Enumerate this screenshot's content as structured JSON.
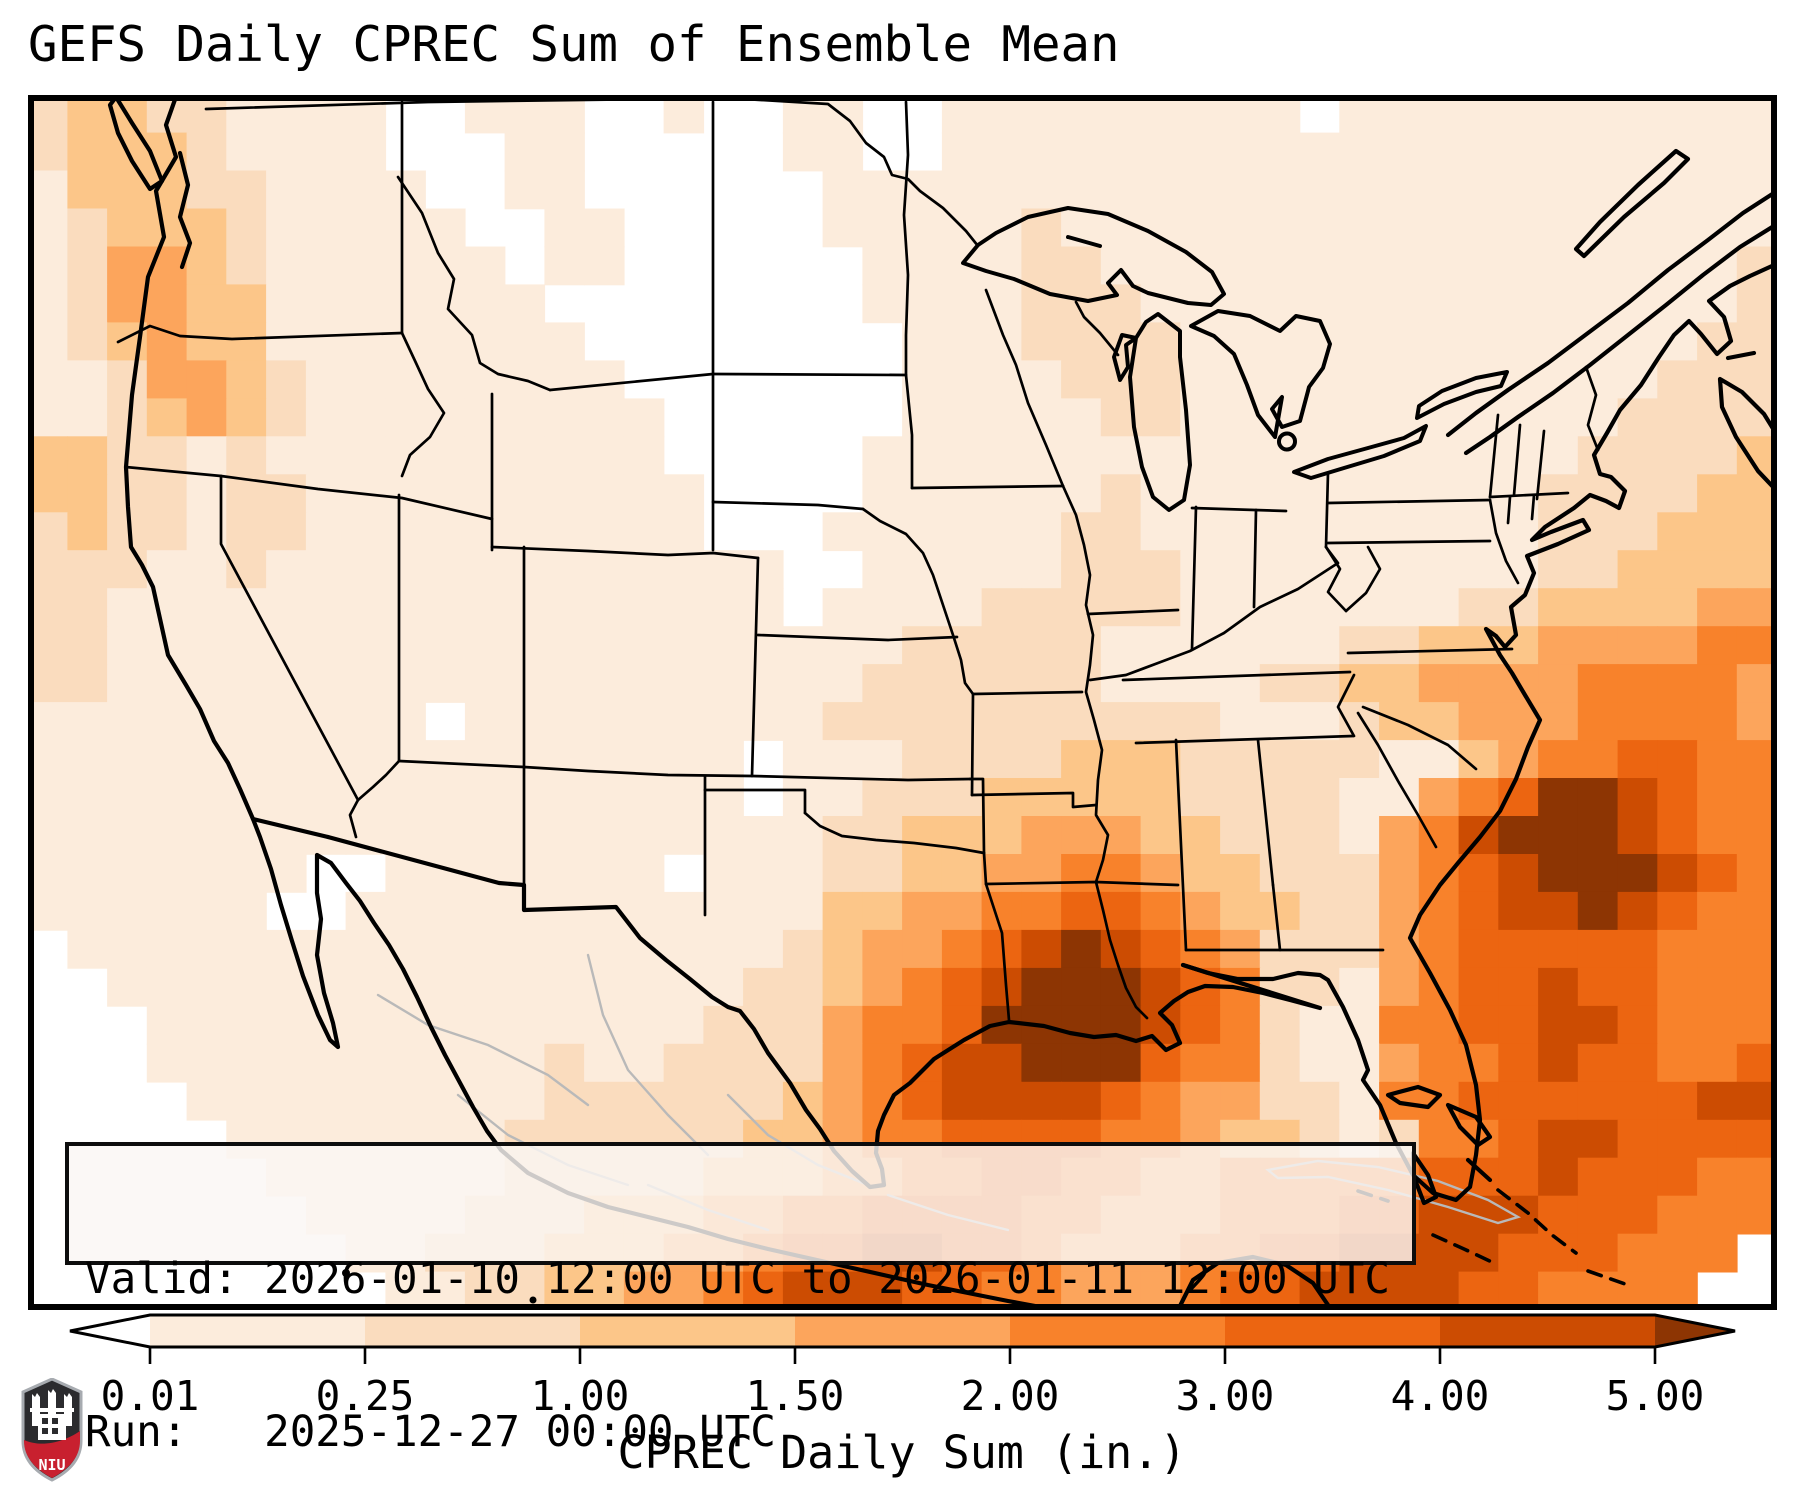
{
  "title": "GEFS Daily CPREC Sum of Ensemble Mean",
  "info_box": {
    "valid_line": "Valid: 2026-01-10 12:00 UTC to 2026-01-11 12:00 UTC",
    "run_line": "Run:   2025-12-27 00:00 UTC"
  },
  "colorbar": {
    "label": "CPREC Daily Sum (in.)",
    "ticks": [
      "0.01",
      "0.25",
      "1.00",
      "1.50",
      "2.00",
      "3.00",
      "4.00",
      "5.00"
    ],
    "segment_colors": [
      "#fcecdc",
      "#fadcbe",
      "#fcc689",
      "#fca55c",
      "#f8822b",
      "#ec6511",
      "#cc4c02"
    ],
    "under_color": "#ffffff",
    "over_color": "#8d3503",
    "outline_color": "#000000"
  },
  "logo": {
    "text": "NIU",
    "silver": "#a7abb0",
    "dark": "#2b2b2e",
    "red": "#c8202f",
    "white": "#ffffff"
  },
  "map": {
    "border_color": "#000000",
    "coast_color": "#000000",
    "foreign_line_color": "#b9b9b9",
    "palette": [
      "#ffffff",
      "#fcecdc",
      "#fadcbe",
      "#fcc689",
      "#fca55c",
      "#f8822b",
      "#ec6511",
      "#cc4c02",
      "#8d3503"
    ],
    "grid": {
      "cols": 44,
      "rows": 32,
      "cell_values": [
        "23322111100111001001100111111111011111111111",
        "23332111100011000001100111111111111111111111",
        "13332211110011000000111111111111111111111111",
        "12333211111001100000111112111111111111111111",
        "12443211111101100000011112211111111111111112",
        "12443311111110000000011112221111111111111112",
        "12343311111111000000001112222111111111111122",
        "11244321111111100000001111222111111111111222",
        "11234321111111110000001111122111111111112222",
        "33221211111111110000011111111111111111122223",
        "33221221111111111000011111121111111111222233",
        "23221221111111111000111111221111111111222333",
        "22211211111111111110011111222111111111223333",
        "22111111111111111110111122222111111122333344",
        "22111111111111111111112222211111122333444455",
        "22111111111111111111122222211112233444455554",
        "11111111110111111111222222222211123344455554",
        "11111111111111111101112222333222221134556655",
        "11111111111111111101122233333222211456887655",
        "11111111111111111111223334443322214578887655",
        "11111110011111110111223344554332224567888765",
        "11111100111111111111334455665433224567787655",
        "01111111111111111112344567876542224566666555",
        "00111111111111111122345678887652214566766555",
        "00011111111111111222455688887652115566776555",
        "00011111111112112222456778886552114556766556",
        "00001111111112222223456777765442215566666677",
        "00000111111122222233455666655433212556776666",
        "00000011111122222333445566554455555666766655",
        "00000001111222333445566665544455566777666555",
        "00000000112223334456677665444556677776665550",
        "00000000011223344567776655444566777766555500"
      ]
    }
  },
  "chart_data": {
    "type": "heatmap",
    "title": "GEFS Daily CPREC Sum of Ensemble Mean",
    "variable": "CPREC Daily Sum",
    "units": "in.",
    "colorbar_boundaries": [
      0.01,
      0.25,
      1.0,
      1.5,
      2.0,
      3.0,
      4.0,
      5.0
    ],
    "colorbar_extend": "both",
    "valid_start": "2026-01-10 12:00 UTC",
    "valid_end": "2026-01-11 12:00 UTC",
    "run": "2025-12-27 00:00 UTC",
    "region": "Continental United States",
    "notable_maxima": [
      {
        "location": "Gulf of Mexico south of Louisiana/Mississippi coast",
        "value_in": ">5.00"
      },
      {
        "location": "Atlantic off the Carolinas (Gulf Stream)",
        "value_in": ">5.00"
      },
      {
        "location": "Pacific offshore Oregon/N. California",
        "value_in": "1.5-2.0"
      }
    ]
  }
}
